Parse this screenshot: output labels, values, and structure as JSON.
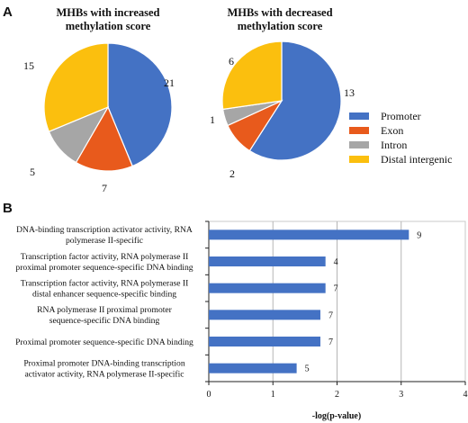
{
  "panel_a_letter": "A",
  "panel_b_letter": "B",
  "legend": {
    "items": [
      {
        "label": "Promoter",
        "color": "#4472c4"
      },
      {
        "label": "Exon",
        "color": "#e85a1c"
      },
      {
        "label": "Intron",
        "color": "#a6a6a6"
      },
      {
        "label": "Distal intergenic",
        "color": "#fbbf0e"
      }
    ]
  },
  "chart_data": [
    {
      "type": "pie",
      "title_lines": [
        "MHBs with increased",
        "methylation score"
      ],
      "categories": [
        "Promoter",
        "Exon",
        "Intron",
        "Distal intergenic"
      ],
      "values": [
        21,
        7,
        5,
        15
      ],
      "value_labels": [
        "21",
        "7",
        "5",
        "15"
      ],
      "colors": [
        "#4472c4",
        "#e85a1c",
        "#a6a6a6",
        "#fbbf0e"
      ]
    },
    {
      "type": "pie",
      "title_lines": [
        "MHBs with decreased",
        "methylation score"
      ],
      "categories": [
        "Promoter",
        "Exon",
        "Intron",
        "Distal intergenic"
      ],
      "values": [
        13,
        2,
        1,
        6
      ],
      "value_labels": [
        "13",
        "2",
        "1",
        "6"
      ],
      "colors": [
        "#4472c4",
        "#e85a1c",
        "#a6a6a6",
        "#fbbf0e"
      ]
    },
    {
      "type": "bar",
      "orientation": "horizontal",
      "categories": [
        [
          "DNA-binding transcription activator activity, RNA",
          "polymerase II-specific"
        ],
        [
          "Transcription factor activity, RNA polymerase II",
          "proximal promoter sequence-specific DNA binding"
        ],
        [
          "Transcription factor activity, RNA polymerase II",
          "distal enhancer sequence-specific binding"
        ],
        [
          "RNA polymerase II proximal promoter",
          "sequence-specific DNA binding"
        ],
        [
          "Proximal promoter sequence-specific DNA binding"
        ],
        [
          "Proximal promoter DNA-binding transcription",
          "activator activity, RNA polymerase II-specific"
        ]
      ],
      "values": [
        3.12,
        1.82,
        1.82,
        1.74,
        1.74,
        1.37
      ],
      "value_labels": [
        "9",
        "4",
        "7",
        "7",
        "7",
        "5"
      ],
      "xlabel": "-log(p-value)",
      "xlim": [
        0,
        4
      ],
      "xticks": [
        "0",
        "1",
        "2",
        "3",
        "4"
      ],
      "grid": true,
      "color": "#4472c4"
    }
  ]
}
